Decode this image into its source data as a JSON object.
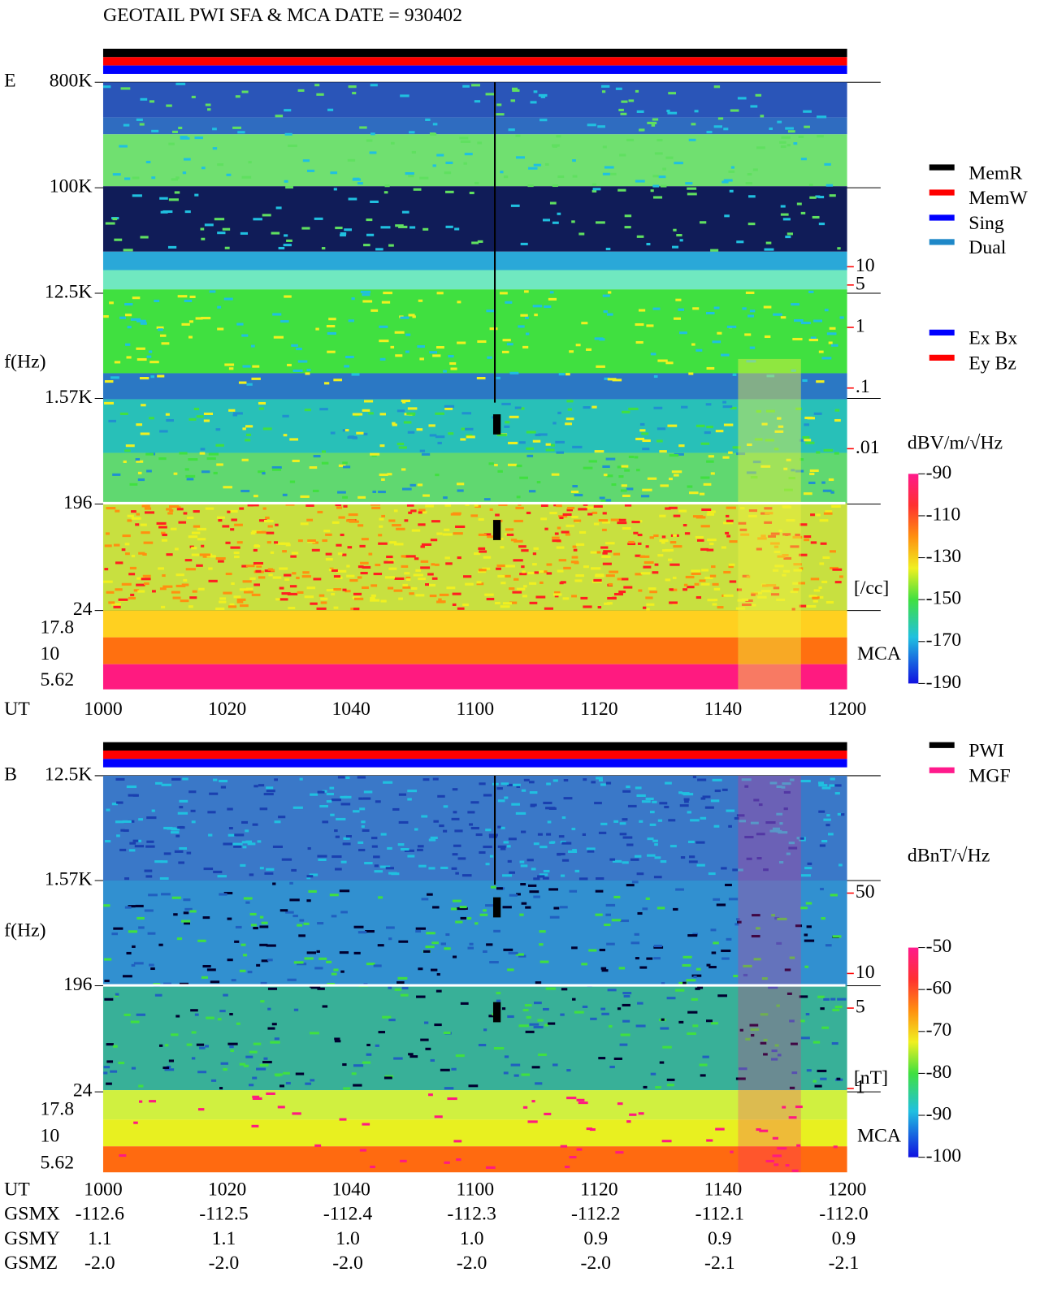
{
  "title": "GEOTAIL  PWI SFA & MCA   DATE = 930402",
  "chart_data": [
    {
      "type": "spectrogram",
      "panel": "E",
      "y_label": "f(Hz)",
      "x_label": "UT",
      "ut_ticks": [
        "1000",
        "1020",
        "1040",
        "1100",
        "1120",
        "1140",
        "1200"
      ],
      "ylog": true,
      "ylim": [
        24,
        800000
      ],
      "yticks": [
        {
          "value": 800000,
          "label": "800K"
        },
        {
          "value": 100000,
          "label": "100K"
        },
        {
          "value": 12500,
          "label": "12.5K"
        },
        {
          "value": 1570,
          "label": "1.57K"
        },
        196,
        24
      ],
      "mca_channels": [
        17.8,
        10,
        5.62
      ],
      "mca_label": "MCA",
      "y2log": true,
      "y2lim": [
        0.01,
        10
      ],
      "y2ticks": [
        10,
        5,
        1,
        {
          "value": 0.1,
          "label": ".1"
        },
        {
          "value": 0.01,
          "label": ".01"
        }
      ],
      "y2_unit": "[/cc]",
      "y2_color": "#ff0000",
      "colorbar": {
        "label": "dBV/m/√Hz",
        "lim": [
          -190,
          -90
        ],
        "ticks": [
          -90,
          -110,
          -130,
          -150,
          -170,
          -190
        ]
      },
      "legend": [
        {
          "name": "MemR",
          "color": "#000000"
        },
        {
          "name": "MemW",
          "color": "#ff0000"
        },
        {
          "name": "Sing",
          "color": "#0000ff"
        },
        {
          "name": "Dual",
          "color": "#1e88c8"
        }
      ],
      "legend2": [
        {
          "name": "Ex Bx",
          "color": "#0000ff"
        },
        {
          "name": "Ey Bz",
          "color": "#ff0000"
        }
      ]
    },
    {
      "type": "spectrogram",
      "panel": "B",
      "y_label": "f(Hz)",
      "x_label": "UT",
      "ut_ticks": [
        "1000",
        "1020",
        "1040",
        "1100",
        "1120",
        "1140",
        "1200"
      ],
      "ylog": true,
      "ylim": [
        24,
        12500
      ],
      "yticks": [
        {
          "value": 12500,
          "label": "12.5K"
        },
        {
          "value": 1570,
          "label": "1.57K"
        },
        196,
        24
      ],
      "mca_channels": [
        17.8,
        10,
        5.62
      ],
      "mca_label": "MCA",
      "y2log": true,
      "y2lim": [
        1,
        50
      ],
      "y2ticks": [
        50,
        10,
        5,
        1
      ],
      "y2_unit": "[nT]",
      "y2_color": "#ff0000",
      "colorbar": {
        "label": "dBnT/√Hz",
        "lim": [
          -100,
          -50
        ],
        "ticks": [
          -50,
          -60,
          -70,
          -80,
          -90,
          -100
        ]
      },
      "legend": [
        {
          "name": "PWI",
          "color": "#000000"
        },
        {
          "name": "MGF",
          "color": "#ff1a8c"
        }
      ]
    }
  ],
  "ephemeris": [
    {
      "name": "GSMX",
      "values": [
        "-112.6",
        "-112.5",
        "-112.4",
        "-112.3",
        "-112.2",
        "-112.1",
        "-112.0"
      ]
    },
    {
      "name": "GSMY",
      "values": [
        "1.1",
        "1.1",
        "1.0",
        "1.0",
        "0.9",
        "0.9",
        "0.9"
      ]
    },
    {
      "name": "GSMZ",
      "values": [
        "-2.0",
        "-2.0",
        "-2.0",
        "-2.0",
        "-2.0",
        "-2.1",
        "-2.1"
      ]
    }
  ]
}
